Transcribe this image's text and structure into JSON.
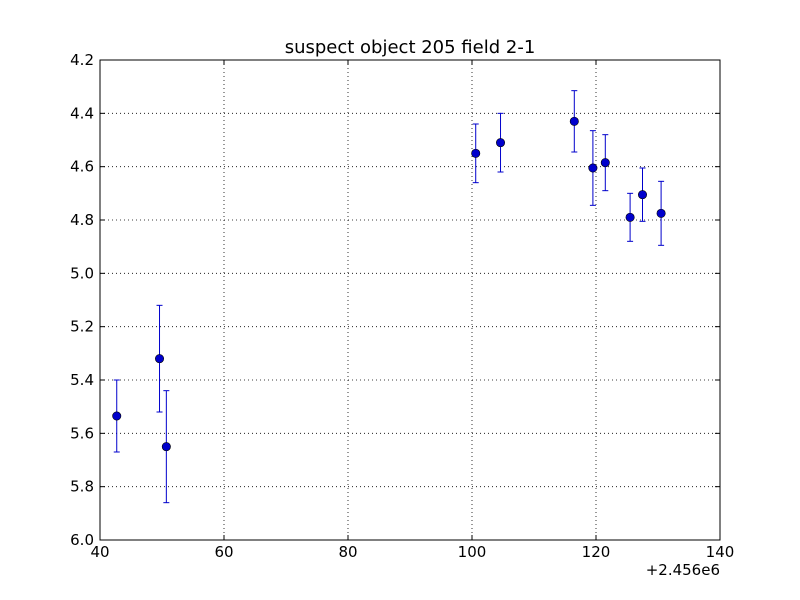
{
  "chart_data": {
    "type": "scatter",
    "title": "suspect object 205 field 2-1",
    "xlabel": "",
    "ylabel": "",
    "x_offset_label": "+2.456e6",
    "xlim": [
      40,
      140
    ],
    "ylim": [
      4.2,
      6.0
    ],
    "y_inverted": true,
    "grid": true,
    "x_ticks": [
      40,
      60,
      80,
      100,
      120,
      140
    ],
    "x_tick_labels": [
      "40",
      "60",
      "80",
      "100",
      "120",
      "140"
    ],
    "y_ticks": [
      4.2,
      4.4,
      4.6,
      4.8,
      5.0,
      5.2,
      5.4,
      5.6,
      5.8,
      6.0
    ],
    "y_tick_labels": [
      "4.2",
      "4.4",
      "4.6",
      "4.8",
      "5.0",
      "5.2",
      "5.4",
      "5.6",
      "5.8",
      "6.0"
    ],
    "series": [
      {
        "color": "#0000cc",
        "marker": "circle",
        "points": [
          {
            "x": 42.7,
            "y": 5.535,
            "yerr": 0.135
          },
          {
            "x": 49.6,
            "y": 5.32,
            "yerr": 0.2
          },
          {
            "x": 50.7,
            "y": 5.65,
            "yerr": 0.21
          },
          {
            "x": 100.6,
            "y": 4.55,
            "yerr": 0.11
          },
          {
            "x": 104.6,
            "y": 4.51,
            "yerr": 0.11
          },
          {
            "x": 116.5,
            "y": 4.43,
            "yerr": 0.115
          },
          {
            "x": 119.5,
            "y": 4.605,
            "yerr": 0.14
          },
          {
            "x": 121.5,
            "y": 4.585,
            "yerr": 0.105
          },
          {
            "x": 125.5,
            "y": 4.79,
            "yerr": 0.09
          },
          {
            "x": 127.5,
            "y": 4.705,
            "yerr": 0.1
          },
          {
            "x": 130.5,
            "y": 4.775,
            "yerr": 0.12
          }
        ]
      }
    ]
  }
}
